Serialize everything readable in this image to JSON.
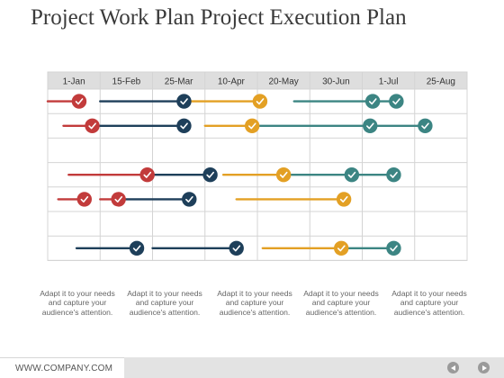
{
  "title": "Project Work Plan Project Execution Plan",
  "chart_data": {
    "type": "gantt",
    "columns": [
      "1-Jan",
      "15-Feb",
      "25-Mar",
      "10-Apr",
      "20-May",
      "30-Jun",
      "1-Jul",
      "25-Aug"
    ],
    "colors": {
      "red": "#c23b3b",
      "navy": "#1e3f5a",
      "orange": "#e3a024",
      "teal": "#3c8583",
      "grid": "#d4d4d4",
      "header": "#dedede"
    },
    "rows": [
      {
        "segments": [
          {
            "color": "red",
            "start": 0.0,
            "end": 0.6,
            "marker": "end"
          },
          {
            "color": "navy",
            "start": 1.0,
            "end": 2.6,
            "marker": "end"
          },
          {
            "color": "orange",
            "start": 2.65,
            "end": 4.05,
            "marker": "end"
          },
          {
            "color": "teal",
            "start": 4.7,
            "end": 6.2,
            "marker": "end"
          },
          {
            "color": "teal",
            "start": 6.2,
            "end": 6.65,
            "marker": "end"
          }
        ]
      },
      {
        "segments": [
          {
            "color": "red",
            "start": 0.3,
            "end": 0.85,
            "marker": "end"
          },
          {
            "color": "navy",
            "start": 0.85,
            "end": 2.6,
            "marker": "end"
          },
          {
            "color": "orange",
            "start": 3.0,
            "end": 3.9,
            "marker": "end"
          },
          {
            "color": "teal",
            "start": 3.9,
            "end": 6.15,
            "marker": "end"
          },
          {
            "color": "teal",
            "start": 6.15,
            "end": 7.2,
            "marker": "end"
          }
        ]
      },
      {
        "segments": []
      },
      {
        "segments": [
          {
            "color": "red",
            "start": 0.4,
            "end": 1.9,
            "marker": "end"
          },
          {
            "color": "navy",
            "start": 1.9,
            "end": 3.1,
            "marker": "end"
          },
          {
            "color": "orange",
            "start": 3.35,
            "end": 4.5,
            "marker": "end"
          },
          {
            "color": "teal",
            "start": 4.5,
            "end": 5.8,
            "marker": "end"
          },
          {
            "color": "teal",
            "start": 5.8,
            "end": 6.6,
            "marker": "end"
          }
        ]
      },
      {
        "segments": [
          {
            "color": "red",
            "start": 0.2,
            "end": 0.7,
            "marker": "end"
          },
          {
            "color": "red",
            "start": 1.0,
            "end": 1.35,
            "marker": "end"
          },
          {
            "color": "navy",
            "start": 1.35,
            "end": 2.7,
            "marker": "end"
          },
          {
            "color": "orange",
            "start": 3.6,
            "end": 5.65,
            "marker": "end"
          }
        ]
      },
      {
        "segments": []
      },
      {
        "segments": [
          {
            "color": "navy",
            "start": 0.55,
            "end": 1.7,
            "marker": "end"
          },
          {
            "color": "navy",
            "start": 2.0,
            "end": 3.6,
            "marker": "end"
          },
          {
            "color": "orange",
            "start": 4.1,
            "end": 5.6,
            "marker": "end"
          },
          {
            "color": "teal",
            "start": 5.6,
            "end": 6.6,
            "marker": "end"
          }
        ]
      }
    ]
  },
  "captions": [
    "Adapt it to your needs and capture your audience's attention.",
    "Adapt it to your needs and capture your audience's attention.",
    "Adapt it to your needs and capture your audience's attention.",
    "Adapt it to your needs and capture your audience's attention.",
    "Adapt it to your needs and capture your audience's attention."
  ],
  "footer": {
    "url": "WWW.COMPANY.COM",
    "prev_icon": "arrow-left-icon",
    "next_icon": "arrow-right-icon"
  }
}
